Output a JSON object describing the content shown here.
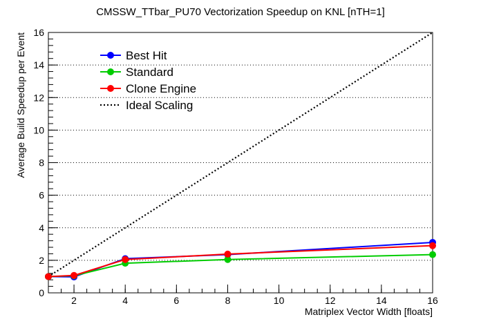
{
  "chart_data": {
    "type": "line",
    "title": "CMSSW_TTbar_PU70 Vectorization Speedup on KNL [nTH=1]",
    "xlabel": "Matriplex Vector Width [floats]",
    "ylabel": "Average Build Speedup per Event",
    "xlim": [
      1,
      16
    ],
    "ylim": [
      0,
      16
    ],
    "x_ticks": [
      2,
      4,
      6,
      8,
      10,
      12,
      14,
      16
    ],
    "y_ticks": [
      0,
      2,
      4,
      6,
      8,
      10,
      12,
      14,
      16
    ],
    "grid": "horizontal dotted",
    "legend_position": "top-left",
    "series": [
      {
        "name": "Best Hit",
        "color": "#0000ff",
        "style": "solid-marker",
        "x": [
          1,
          2,
          4,
          8,
          16
        ],
        "y": [
          1.0,
          0.98,
          2.1,
          2.35,
          3.1
        ]
      },
      {
        "name": "Standard",
        "color": "#00cc00",
        "style": "solid-marker",
        "x": [
          1,
          2,
          4,
          8,
          16
        ],
        "y": [
          1.0,
          1.05,
          1.82,
          2.05,
          2.35
        ]
      },
      {
        "name": "Clone Engine",
        "color": "#ff0000",
        "style": "solid-marker",
        "x": [
          1,
          2,
          4,
          8,
          16
        ],
        "y": [
          1.0,
          1.07,
          2.05,
          2.38,
          2.9
        ]
      },
      {
        "name": "Ideal Scaling",
        "color": "#000000",
        "style": "dotted",
        "x": [
          1,
          16
        ],
        "y": [
          1,
          16
        ]
      }
    ]
  }
}
